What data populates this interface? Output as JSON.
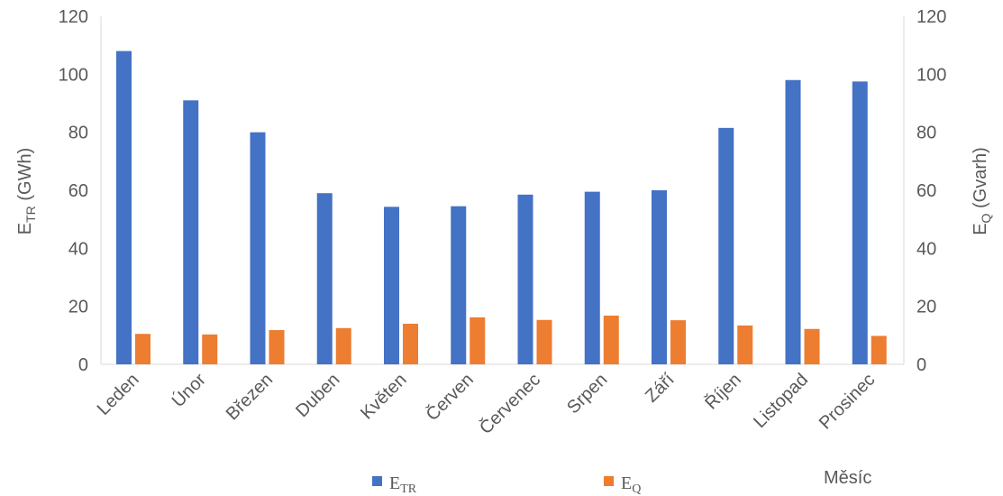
{
  "chart_data": {
    "type": "bar",
    "categories": [
      "Leden",
      "Únor",
      "Březen",
      "Duben",
      "Květen",
      "Červen",
      "Červenec",
      "Srpen",
      "Září",
      "Říjen",
      "Listopad",
      "Prosinec"
    ],
    "series": [
      {
        "name_main": "E",
        "name_sub": "TR",
        "color": "#4472C4",
        "axis": "left",
        "values": [
          108,
          91,
          80,
          59,
          54.3,
          54.5,
          58.5,
          59.5,
          60,
          81.5,
          98,
          97.5
        ]
      },
      {
        "name_main": "E",
        "name_sub": "Q",
        "color": "#ED7D31",
        "axis": "right",
        "values": [
          10.5,
          10.3,
          11.8,
          12.5,
          14,
          16.2,
          15.3,
          16.8,
          15.2,
          13.4,
          12.2,
          9.8
        ]
      }
    ],
    "ylabel_left": {
      "main": "E",
      "sub": "TR",
      "rest": " (GWh)"
    },
    "ylabel_right": {
      "main": "E",
      "sub": "Q",
      "rest": " (Gvarh)"
    },
    "xlabel": "Měsíc",
    "ylim_left": [
      0,
      120
    ],
    "ylim_right": [
      0,
      120
    ],
    "yticks": [
      0,
      20,
      40,
      60,
      80,
      100,
      120
    ],
    "grid": false,
    "legend_position": "bottom"
  }
}
